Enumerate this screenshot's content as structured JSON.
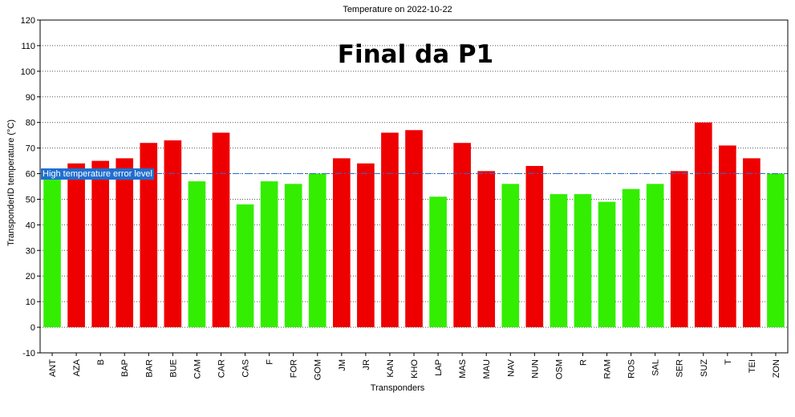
{
  "chart_data": {
    "type": "bar",
    "title": "Temperature on 2022-10-22",
    "overlay_text": "Final da P1",
    "xlabel": "Transponders",
    "ylabel": "TransponderID temperature (°C)",
    "ylim": [
      -10,
      120
    ],
    "yticks": [
      -10,
      0,
      10,
      20,
      30,
      40,
      50,
      60,
      70,
      80,
      90,
      100,
      110,
      120
    ],
    "grid": true,
    "threshold": {
      "value": 60,
      "label": "High temperature error level",
      "color": "#1f6fd0"
    },
    "colors": {
      "below": "#33ee00",
      "above": "#ee0000"
    },
    "categories": [
      "ANT",
      "AZA",
      "B",
      "BAP",
      "BAR",
      "BUE",
      "CAM",
      "CAR",
      "CAS",
      "F",
      "FOR",
      "GOM",
      "JM",
      "JR",
      "KAN",
      "KHO",
      "LAP",
      "MAS",
      "MAU",
      "NAV",
      "NUN",
      "OSM",
      "R",
      "RAM",
      "ROS",
      "SAL",
      "SER",
      "SUZ",
      "T",
      "TEI",
      "ZON"
    ],
    "values": [
      60,
      64,
      65,
      66,
      72,
      73,
      57,
      76,
      48,
      57,
      56,
      60,
      66,
      64,
      76,
      77,
      51,
      72,
      61,
      56,
      63,
      52,
      52,
      49,
      54,
      56,
      61,
      80,
      71,
      66,
      60
    ]
  }
}
